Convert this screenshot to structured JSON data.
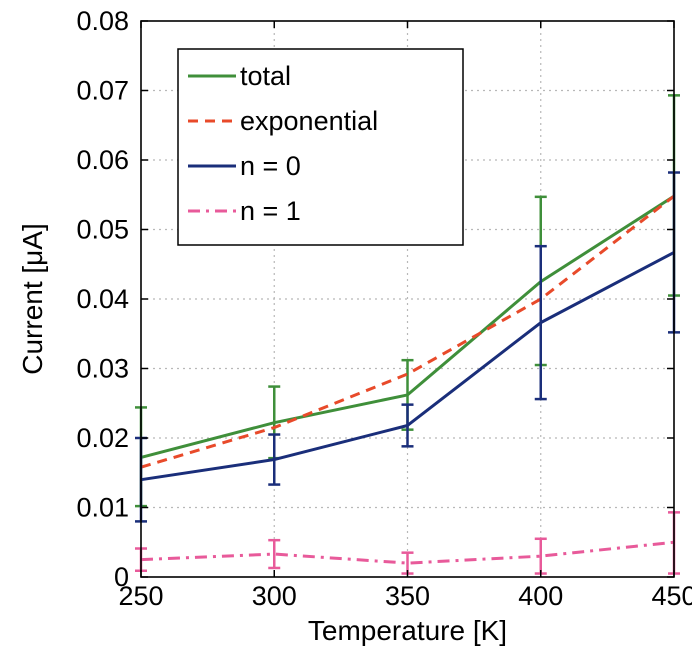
{
  "chart_data": {
    "type": "line",
    "title": "",
    "xlabel": "Temperature [K]",
    "ylabel": "Current [μA]",
    "xlim": [
      250,
      450
    ],
    "ylim": [
      0,
      0.08
    ],
    "x_ticks": [
      250,
      300,
      350,
      400,
      450
    ],
    "y_ticks": [
      0,
      0.01,
      0.02,
      0.03,
      0.04,
      0.05,
      0.06,
      0.07,
      0.08
    ],
    "x_tick_labels": [
      "250",
      "300",
      "350",
      "400",
      "450"
    ],
    "y_tick_labels": [
      "0",
      "0.01",
      "0.02",
      "0.03",
      "0.04",
      "0.05",
      "0.06",
      "0.07",
      "0.08"
    ],
    "grid": true,
    "legend_position": "top-left",
    "x": [
      250,
      300,
      350,
      400,
      450
    ],
    "series": [
      {
        "name": "total",
        "color": "#3f8f3a",
        "style": "solid",
        "values": [
          0.0172,
          0.0222,
          0.0262,
          0.0425,
          0.0548
        ],
        "err_low": [
          0.0102,
          0.0171,
          0.0212,
          0.0305,
          0.0405
        ],
        "err_high": [
          0.0244,
          0.0274,
          0.0312,
          0.0547,
          0.0693
        ]
      },
      {
        "name": "exponential",
        "color": "#e84a2a",
        "style": "dashed",
        "values": [
          0.0158,
          0.0215,
          0.0292,
          0.04,
          0.0548
        ]
      },
      {
        "name": "n = 0",
        "color": "#1a2e7a",
        "style": "solid",
        "values": [
          0.014,
          0.0169,
          0.0218,
          0.0366,
          0.0467
        ],
        "err_low": [
          0.008,
          0.0133,
          0.0188,
          0.0256,
          0.0352
        ],
        "err_high": [
          0.02,
          0.0205,
          0.0248,
          0.0476,
          0.0582
        ]
      },
      {
        "name": "n = 1",
        "color": "#e85a9a",
        "style": "dashdot",
        "values": [
          0.0025,
          0.0033,
          0.002,
          0.003,
          0.005
        ],
        "err_low": [
          0.0009,
          0.0013,
          0.0005,
          0.0005,
          0.0005
        ],
        "err_high": [
          0.0041,
          0.0053,
          0.0035,
          0.0055,
          0.0093
        ]
      }
    ]
  }
}
